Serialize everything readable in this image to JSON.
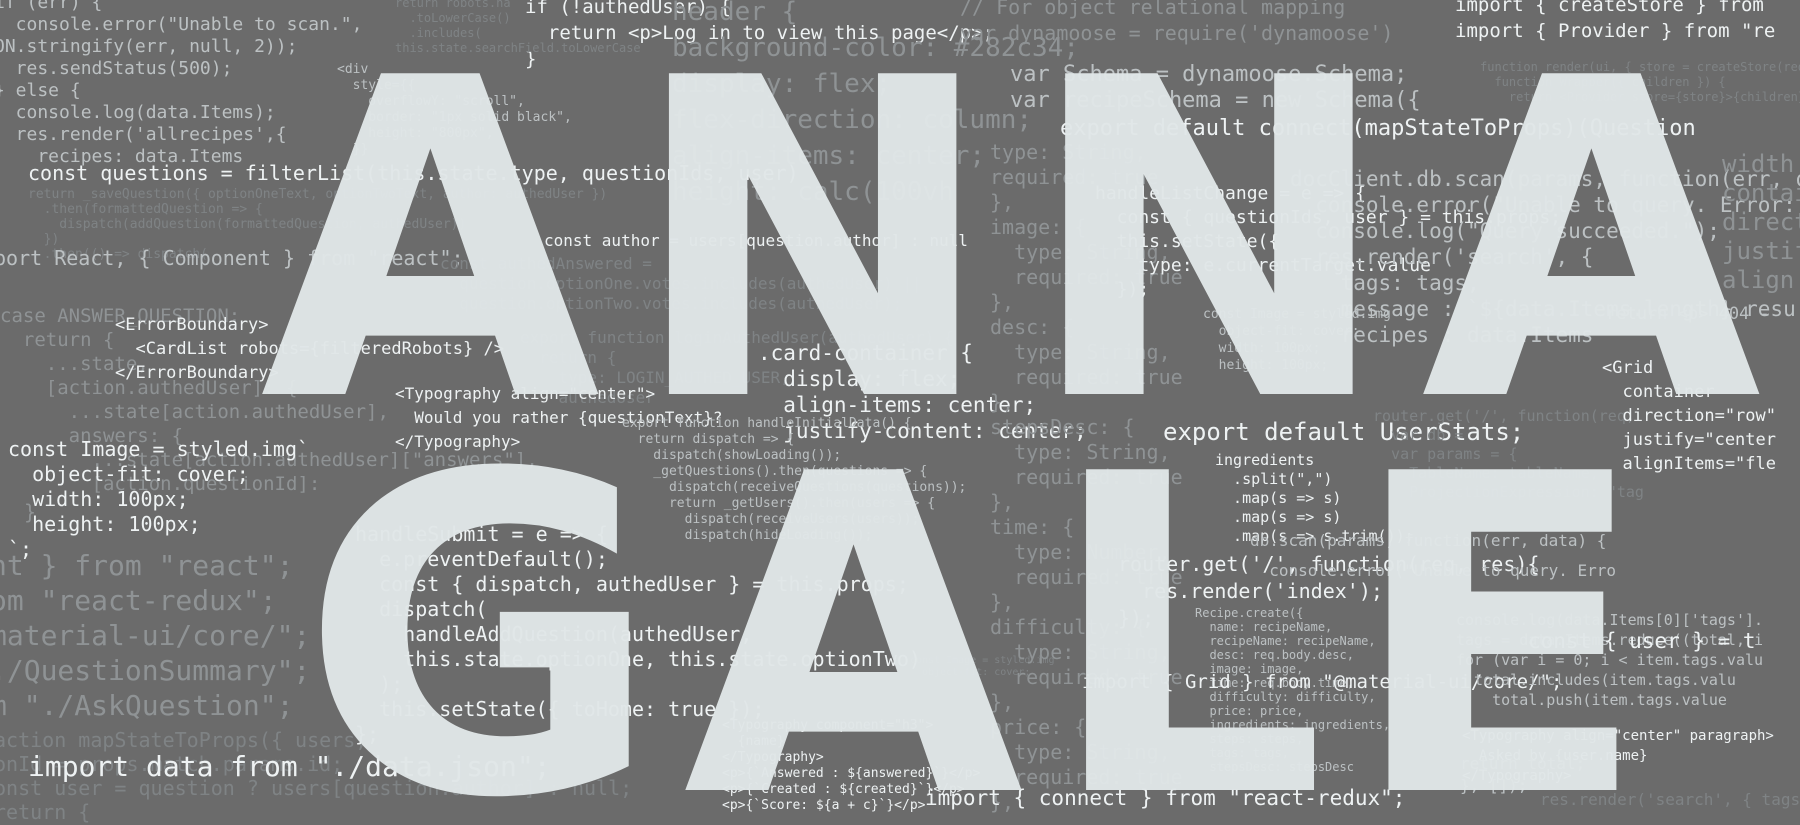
{
  "headline": {
    "line1": "ANNA",
    "line2": "GALE"
  },
  "code_fragments": [
    {
      "text": "if (err) {\n  console.error(\"Unable to scan.\",\nON.stringify(err, null, 2));\n  res.sendStatus(500);\n} else {\n  console.log(data.Items);\n  res.render('allrecipes',{\n    recipes: data.Items",
      "tone": "c-mid",
      "size": 18
    },
    {
      "text": "const questions = filterList(this.state.type, questionIds, user)",
      "tone": "c-bright",
      "size": 20
    },
    {
      "text": "return _saveQuestion({ optionOneText, optionTwoText, author: authedUser })\n  .then(formattedQuestion => {\n    dispatch(addQuestion(formattedQuestion, authedUser))\n  })\n  .then(() => dispatch(",
      "tone": "c-faint",
      "size": 13
    },
    {
      "text": "port React, { Component } from \"react\";",
      "tone": "c-mid",
      "size": 20
    },
    {
      "text": "case ANSWER_QUESTION:\n  return {\n    ...state,\n    [action.authedUser]: {\n      ...state[action.authedUser],\n      answers: {\n        ...state[action.authedUser][\"answers\"],\n        [action.questionId]:",
      "tone": "c-dim",
      "size": 19
    },
    {
      "text": "<ErrorBoundary>\n  <CardList robots={filteredRobots} />\n</ErrorBoundary>",
      "tone": "c-bright",
      "size": 17
    },
    {
      "text": "const Image = styled.img`\n  object-fit: cover;\n  width: 100px;\n  height: 100px;\n`;",
      "tone": "c-bright",
      "size": 20
    },
    {
      "text": "nt } from \"react\";\nom \"react-redux\";\nmaterial-ui/core/\";\n./QuestionSummary\";\nm \"./AskQuestion\";",
      "tone": "c-dim",
      "size": 28
    },
    {
      "text": "action mapStateToProps({ users,\nonId = props.match.params.id;\nonst user = question ? users[question.author] : null;\nreturn {",
      "tone": "c-faint",
      "size": 20
    },
    {
      "text": "import data from \"./data.json\";",
      "tone": "c-bright",
      "size": 28
    },
    {
      "text": "if (!authedUser) {\n  return <p>Log in to view this page</p>;\n}",
      "tone": "c-bright",
      "size": 19
    },
    {
      "text": "return robots.na\n  .toLowerCase()\n  .includes(\nthis.state.searchField.toLowerCase",
      "tone": "c-faint",
      "size": 12
    },
    {
      "text": "<div\n  style={{\n    overflowY: \"scroll\",\n    border: \"1px solid black\",\n    height: \"800px\",\n  }}",
      "tone": "c-mid",
      "size": 13
    },
    {
      "text": "header {\nbackground-color: #282c34;\ndisplay: flex;\nflex-direction: column;\nalign-items: center;\nheight: calc(100vh",
      "tone": "c-dim",
      "size": 26
    },
    {
      "text": "const author = users[question.author] : null",
      "tone": "c-bright",
      "size": 16
    },
    {
      "text": "const authedAnswered =\n  question.optionOne.votes.includes(authedUser) ||\n  question.optionTwo.votes.includes(authedUser);",
      "tone": "c-faint",
      "size": 16
    },
    {
      "text": "export function loginAuthedUser(authedUser) {\n  return {\n    type: LOGIN_AUTHED_USER,\n    authedUser",
      "tone": "c-faint",
      "size": 16
    },
    {
      "text": "<Typography align=\"center\">\n  Would you rather {questionText}?\n</Typography>",
      "tone": "c-bright",
      "size": 16
    },
    {
      "text": ".card-container {\n  display: flex;\n  align-items: center;\n  justify-content: center;",
      "tone": "c-bright",
      "size": 21
    },
    {
      "text": "export function handleInitialData() {\n  return dispatch => {\n    dispatch(showLoading());\n    _getQuestions().then(questions => {\n      dispatch(receiveQuestions(questions));\n      return _getUsers().then(users => {\n        dispatch(receiveUsers(users));\n        dispatch(hideLoading());",
      "tone": "c-mid",
      "size": 13
    },
    {
      "text": "handleSubmit = e => {\n  e.preventDefault();\n  const { dispatch, authedUser } = this.props;\n  dispatch(\n    handleAddQuestion(authedUser,\n    this.state.optionOne, this.state.optionTwo)\n  );\n  this.setState({ toHome: true });\n};",
      "tone": "c-bright",
      "size": 20
    },
    {
      "text": "const Image = styled.img\n  object-fit: cover;",
      "tone": "c-faint",
      "size": 10
    },
    {
      "text": "<Typography component=\"h3\">\n  {name}\n</Typography>\n<p>{`Answered : ${answered}`}</p>\n<p>{`Created : ${created}`}</p>\n<p>{`Score: ${a + c}`}</p>",
      "tone": "c-bright",
      "size": 13
    },
    {
      "text": "// For object relational mapping\nvar dynamoose = require('dynamoose')",
      "tone": "c-dim",
      "size": 20
    },
    {
      "text": "var Schema = dynamoose.Schema;\nvar recipeSchema = new Schema({",
      "tone": "c-mid",
      "size": 22
    },
    {
      "text": "type: String,\nrequired: true\n},\nimage: {\n  type: String,\n  required: true\n},\ndesc: {\n  type: String,\n  required: true\n},\nstepsDesc: {\n  type: String,\n  required: true\n},\ntime: {\n  type: Number,\n  required: true\n},\ndifficulty: {\n  type: String,\n  required: true\n},\nprice: {\n  type: String,\n  required: true\n},",
      "tone": "c-dim",
      "size": 20
    },
    {
      "text": "handleListChange = e => {\n  const { questionIds, user } = this.props;\n  this.setState({\n    type: e.currentTarget.value\n  });",
      "tone": "c-bright",
      "size": 18
    },
    {
      "text": "export default connect(mapStateToProps)(Question",
      "tone": "c-bright",
      "size": 22
    },
    {
      "text": "docClient.db.scan(params, function(err, data) {\n  console.error(\"Unable to query. Error:\n  console.log(\"Query succeeded.\");\n  res.render('search', {\n    tags: tags,\n    message : `${data.Items.length} resu\n    recipes : data.Items",
      "tone": "c-mid",
      "size": 21
    },
    {
      "text": "const Image = styled.img\n  object-fit: cover;\n  width: 100px;\n  height: 100px;",
      "tone": "c-mid",
      "size": 13
    },
    {
      "text": "export default UserStats;",
      "tone": "c-bright",
      "size": 24
    },
    {
      "text": "ingredients\n  .split(\",\")\n  .map(s => s)\n  .map(s => s)\n  .map(s => s.trim());",
      "tone": "c-bright",
      "size": 15
    },
    {
      "text": "router.get('/', function(req,\n  var db =\n  var params = {\n    TableName: tableName,\n    ProjectionExpression: \"tag",
      "tone": "c-faint",
      "size": 15
    },
    {
      "text": "router.get('/', function(req, res){\n  res.render('index');\n});",
      "tone": "c-bright",
      "size": 20
    },
    {
      "text": "Recipe.create({\n  name: recipeName,\n  recipeName: recipeName,\n  desc: req.body.desc,\n  image: image,\n  time: req.body.time,\n  difficulty: difficulty,\n  price: price,\n  ingredients: ingredients,\n  steps: steps,\n  tags: tags,\n  stepsDesc: stepsDesc",
      "tone": "c-mid",
      "size": 12
    },
    {
      "text": "import { Grid } from \"@material-ui/core/\";",
      "tone": "c-bright",
      "size": 19
    },
    {
      "text": "import { connect } from \"react-redux\";",
      "tone": "c-bright",
      "size": 21
    },
    {
      "text": "import { createStore } from\nimport { Provider } from \"re",
      "tone": "c-bright",
      "size": 19
    },
    {
      "text": "function render(ui, { store = createStore(reducer),\n  function Wrapper({ children }) {\n    return <Provider store={store}>{children}</Pro",
      "tone": "c-faint",
      "size": 12
    },
    {
      "text": "width\ncontai\ndirecti\njustif\nalign",
      "tone": "c-dim",
      "size": 24
    },
    {
      "text": "return <p> 404 -",
      "tone": "c-mid",
      "size": 17
    },
    {
      "text": "<Grid\n  container\n  direction=\"row\"\n  justify=\"center\n  alignItems=\"fle",
      "tone": "c-bright",
      "size": 17
    },
    {
      "text": "db.scan(params, function(err, data) {\n  console.error(\"Unable to query. Erro",
      "tone": "c-mid",
      "size": 16
    },
    {
      "text": "console.log(data.Items[0]['tags'].\ntags = data.Items.reduce((total, i\nfor (var i = 0; i < item.tags.valu\n  total.includes(item.tags.valu\n    total.push(item.tags.value",
      "tone": "c-mid",
      "size": 15
    },
    {
      "text": "const { user } = t",
      "tone": "c-bright",
      "size": 21
    },
    {
      "text": "<Typography align=\"center\" paragraph>\n  Asked by {user.name}\n</Typography>",
      "tone": "c-bright",
      "size": 14
    },
    {
      "text": "return total;\n}, []);",
      "tone": "c-mid",
      "size": 16
    },
    {
      "text": "res.render('search', { tags: tags, recipes",
      "tone": "c-faint",
      "size": 16
    },
    {
      "text": "}",
      "tone": "c-dim",
      "size": 20
    }
  ]
}
